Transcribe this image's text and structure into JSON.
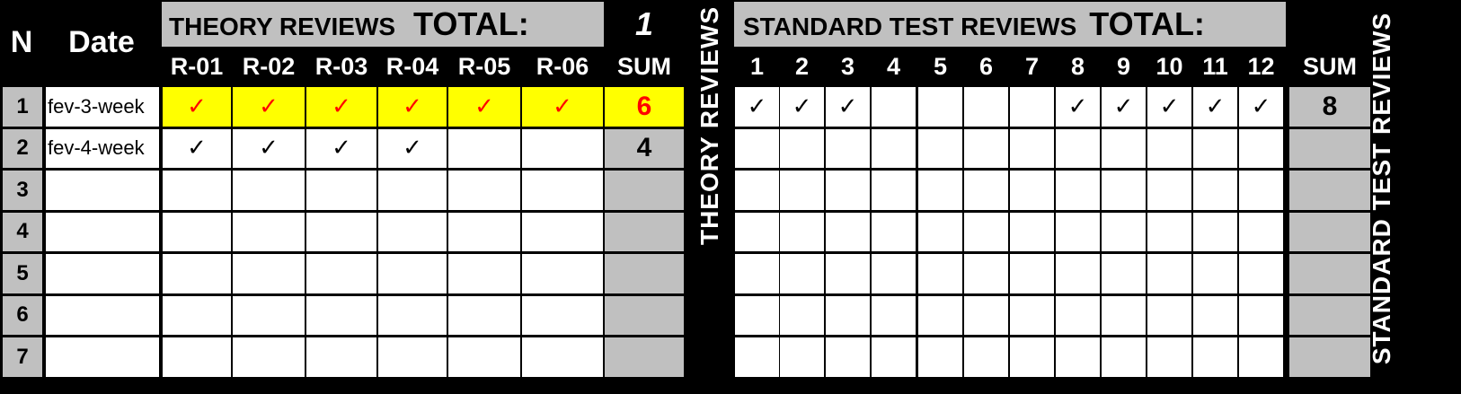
{
  "header": {
    "n_label": "N",
    "date_label": "Date",
    "theory_title": "THEORY REVIEWS",
    "theory_total_label": "TOTAL:",
    "theory_total_value": "1",
    "standard_title": "STANDARD TEST REVIEWS",
    "standard_total_label": "TOTAL:",
    "theory_cols": [
      "R-01",
      "R-02",
      "R-03",
      "R-04",
      "R-05",
      "R-06"
    ],
    "standard_cols": [
      "1",
      "2",
      "3",
      "4",
      "5",
      "6",
      "7",
      "8",
      "9",
      "10",
      "11",
      "12"
    ],
    "sum_label": "SUM"
  },
  "vertical_labels": {
    "theory": "THEORY REVIEWS",
    "standard": "STANDARD TEST REVIEWS"
  },
  "check_glyph": "✓",
  "colors": {
    "highlight": "#ffff00",
    "red_check": "#ff0000",
    "gray": "#c0c0c0"
  },
  "rows": [
    {
      "n": "1",
      "date": "fev-3-week",
      "theory": [
        true,
        true,
        true,
        true,
        true,
        true
      ],
      "theory_sum": "6",
      "standard": [
        true,
        true,
        true,
        false,
        false,
        false,
        false,
        true,
        true,
        true,
        true,
        true
      ],
      "standard_sum": "8",
      "highlight": true
    },
    {
      "n": "2",
      "date": "fev-4-week",
      "theory": [
        true,
        true,
        true,
        true,
        false,
        false
      ],
      "theory_sum": "4",
      "standard": [
        false,
        false,
        false,
        false,
        false,
        false,
        false,
        false,
        false,
        false,
        false,
        false
      ],
      "standard_sum": "",
      "highlight": false
    },
    {
      "n": "3",
      "date": "",
      "theory": [
        false,
        false,
        false,
        false,
        false,
        false
      ],
      "theory_sum": "",
      "standard": [
        false,
        false,
        false,
        false,
        false,
        false,
        false,
        false,
        false,
        false,
        false,
        false
      ],
      "standard_sum": "",
      "highlight": false
    },
    {
      "n": "4",
      "date": "",
      "theory": [
        false,
        false,
        false,
        false,
        false,
        false
      ],
      "theory_sum": "",
      "standard": [
        false,
        false,
        false,
        false,
        false,
        false,
        false,
        false,
        false,
        false,
        false,
        false
      ],
      "standard_sum": "",
      "highlight": false
    },
    {
      "n": "5",
      "date": "",
      "theory": [
        false,
        false,
        false,
        false,
        false,
        false
      ],
      "theory_sum": "",
      "standard": [
        false,
        false,
        false,
        false,
        false,
        false,
        false,
        false,
        false,
        false,
        false,
        false
      ],
      "standard_sum": "",
      "highlight": false
    },
    {
      "n": "6",
      "date": "",
      "theory": [
        false,
        false,
        false,
        false,
        false,
        false
      ],
      "theory_sum": "",
      "standard": [
        false,
        false,
        false,
        false,
        false,
        false,
        false,
        false,
        false,
        false,
        false,
        false
      ],
      "standard_sum": "",
      "highlight": false
    },
    {
      "n": "7",
      "date": "",
      "theory": [
        false,
        false,
        false,
        false,
        false,
        false
      ],
      "theory_sum": "",
      "standard": [
        false,
        false,
        false,
        false,
        false,
        false,
        false,
        false,
        false,
        false,
        false,
        false
      ],
      "standard_sum": "",
      "highlight": false
    }
  ]
}
